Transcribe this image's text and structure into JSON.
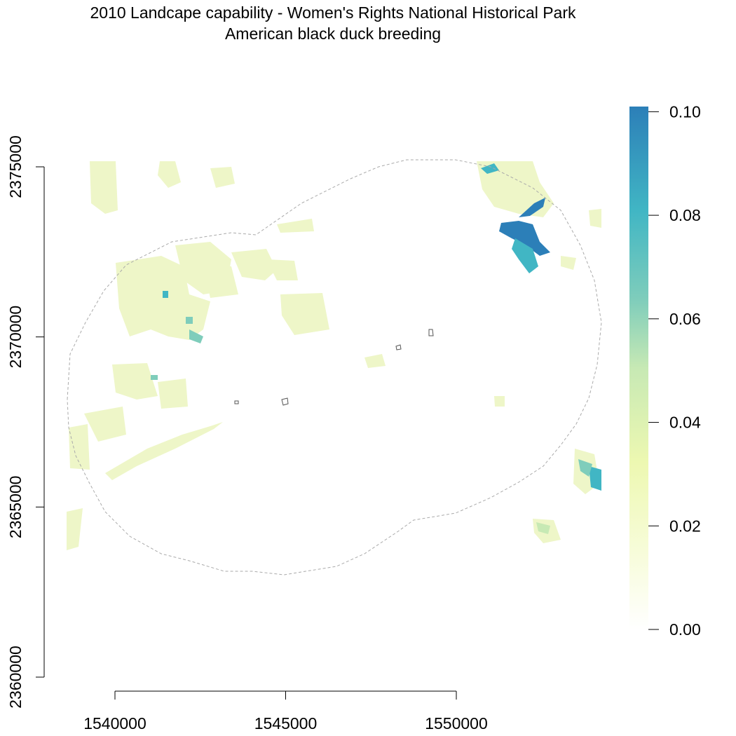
{
  "title": "2010 Landcape capability - Women's Rights National Historical Park",
  "subtitle": "American black duck breeding",
  "x_axis": {
    "ticks": [
      1540000,
      1545000,
      1550000
    ],
    "tick_labels": [
      "1540000",
      "1545000",
      "1550000"
    ]
  },
  "y_axis": {
    "ticks": [
      2360000,
      2365000,
      2370000,
      2375000
    ],
    "tick_labels": [
      "2360000",
      "2365000",
      "2370000",
      "2375000"
    ]
  },
  "legend": {
    "min": 0.0,
    "max": 0.101,
    "ticks": [
      0.0,
      0.02,
      0.04,
      0.06,
      0.08,
      0.1
    ],
    "tick_labels": [
      "0.00",
      "0.02",
      "0.04",
      "0.06",
      "0.08",
      "0.10"
    ],
    "colors": [
      "#ffffff",
      "#f7fcd9",
      "#edf8b1",
      "#c7e9b4",
      "#7fcdbb",
      "#41b6c4",
      "#2c7fb8"
    ]
  },
  "colors": {
    "buffer_outline": "#aaaaaa",
    "park_outline": "#555555",
    "low_cells": "#eef6c8",
    "high_cells": "#2c7fb8"
  }
}
